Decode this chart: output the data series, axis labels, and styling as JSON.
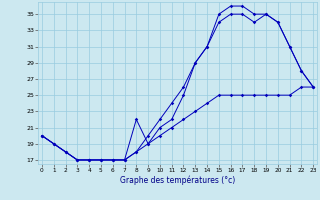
{
  "xlabel": "Graphe des températures (°c)",
  "background_color": "#cce8f0",
  "grid_color": "#99cce0",
  "line_color": "#0000bb",
  "ylim": [
    16.5,
    36.5
  ],
  "xlim": [
    -0.3,
    23.3
  ],
  "yticks": [
    17,
    19,
    21,
    23,
    25,
    27,
    29,
    31,
    33,
    35
  ],
  "xticks": [
    0,
    1,
    2,
    3,
    4,
    5,
    6,
    7,
    8,
    9,
    10,
    11,
    12,
    13,
    14,
    15,
    16,
    17,
    18,
    19,
    20,
    21,
    22,
    23
  ],
  "line1_x": [
    0,
    1,
    2,
    3,
    4,
    5,
    6,
    7,
    8,
    9,
    10,
    11,
    12,
    13,
    14,
    15,
    16,
    17,
    18,
    19,
    20,
    21,
    22,
    23
  ],
  "line1_y": [
    20,
    19,
    18,
    17,
    17,
    17,
    17,
    17,
    22,
    19,
    21,
    22,
    25,
    29,
    31,
    35,
    36,
    36,
    35,
    35,
    34,
    31,
    28,
    26
  ],
  "line2_x": [
    0,
    1,
    2,
    3,
    4,
    5,
    6,
    7,
    8,
    9,
    10,
    11,
    12,
    13,
    14,
    15,
    16,
    17,
    18,
    19,
    20,
    21,
    22,
    23
  ],
  "line2_y": [
    20,
    19,
    18,
    17,
    17,
    17,
    17,
    17,
    18,
    20,
    22,
    24,
    26,
    29,
    31,
    34,
    35,
    35,
    34,
    35,
    34,
    31,
    28,
    26
  ],
  "line3_x": [
    0,
    1,
    2,
    3,
    4,
    5,
    6,
    7,
    8,
    9,
    10,
    11,
    12,
    13,
    14,
    15,
    16,
    17,
    18,
    19,
    20,
    21,
    22,
    23
  ],
  "line3_y": [
    20,
    19,
    18,
    17,
    17,
    17,
    17,
    17,
    18,
    19,
    20,
    21,
    22,
    23,
    24,
    25,
    25,
    25,
    25,
    25,
    25,
    25,
    26,
    26
  ]
}
